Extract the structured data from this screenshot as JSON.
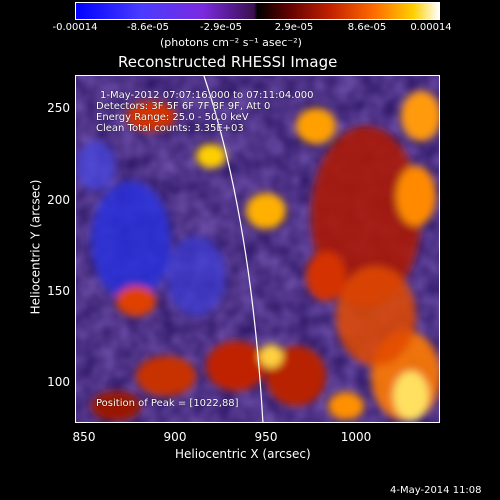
{
  "colorbar": {
    "ticks": [
      "-0.00014",
      "-8.6e-05",
      "-2.9e-05",
      "2.9e-05",
      "8.6e-05",
      "0.00014"
    ],
    "units": "(photons cm⁻² s⁻¹ asec⁻²)"
  },
  "title": "Reconstructed RHESSI Image",
  "info": {
    "time_range": "1-May-2012 07:07:16.000 to 07:11:04.000",
    "detectors": "Detectors: 3F 5F 6F 7F 8F 9F, Att 0",
    "energy": "Energy Range: 25.0 - 50.0 keV",
    "method": "Clean     Total counts: 3.35E+03",
    "peak": "Position of Peak = [1022,88]"
  },
  "axes": {
    "xlabel": "Heliocentric X (arcsec)",
    "ylabel": "Heliocentric Y (arcsec)",
    "xticks": [
      "850",
      "900",
      "950",
      "1000"
    ],
    "yticks": [
      "250",
      "200",
      "150",
      "100"
    ]
  },
  "footer": {
    "timestamp": "4-May-2014 11:08"
  }
}
